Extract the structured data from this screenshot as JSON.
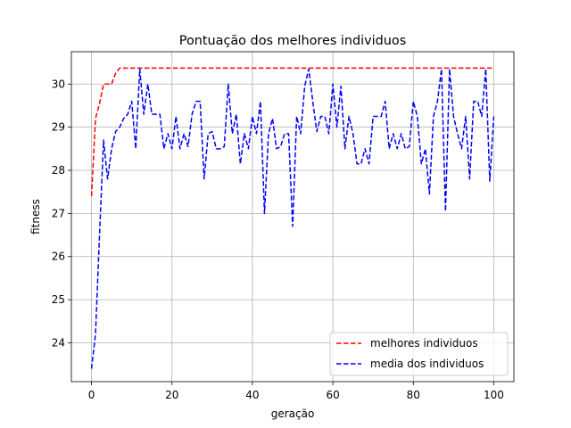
{
  "chart_data": {
    "type": "line",
    "title": "Pontuação dos melhores individuos",
    "xlabel": "geração",
    "ylabel": "fitness",
    "xlim": [
      -5,
      105
    ],
    "ylim": [
      23.1,
      30.75
    ],
    "xticks": [
      0,
      20,
      40,
      60,
      80,
      100
    ],
    "yticks": [
      24,
      25,
      26,
      27,
      28,
      29,
      30
    ],
    "grid": true,
    "legend_position": "lower-right",
    "series": [
      {
        "name": "melhores individuos",
        "color": "#ff0000",
        "style": "dashed",
        "x": [
          0,
          1,
          2,
          3,
          4,
          5,
          6,
          7,
          100
        ],
        "y": [
          27.4,
          29.2,
          29.55,
          30.0,
          30.0,
          30.0,
          30.25,
          30.37,
          30.37
        ]
      },
      {
        "name": "media dos individuos",
        "color": "#0000ff",
        "style": "dashed",
        "x": [
          0,
          1,
          2,
          3,
          4,
          5,
          6,
          7,
          8,
          9,
          10,
          11,
          12,
          13,
          14,
          15,
          16,
          17,
          18,
          19,
          20,
          21,
          22,
          23,
          24,
          25,
          26,
          27,
          28,
          29,
          30,
          31,
          32,
          33,
          34,
          35,
          36,
          37,
          38,
          39,
          40,
          41,
          42,
          43,
          44,
          45,
          46,
          47,
          48,
          49,
          50,
          51,
          52,
          53,
          54,
          55,
          56,
          57,
          58,
          59,
          60,
          61,
          62,
          63,
          64,
          65,
          66,
          67,
          68,
          69,
          70,
          71,
          72,
          73,
          74,
          75,
          76,
          77,
          78,
          79,
          80,
          81,
          82,
          83,
          84,
          85,
          86,
          87,
          88,
          89,
          90,
          91,
          92,
          93,
          94,
          95,
          96,
          97,
          98,
          99,
          100
        ],
        "y": [
          23.4,
          24.2,
          26.5,
          28.7,
          27.8,
          28.5,
          28.9,
          29.0,
          29.2,
          29.3,
          29.6,
          28.5,
          30.35,
          29.3,
          30.0,
          29.3,
          29.3,
          29.3,
          28.5,
          28.85,
          28.5,
          29.25,
          28.5,
          28.85,
          28.55,
          29.3,
          29.6,
          29.6,
          27.8,
          28.85,
          28.9,
          28.5,
          28.5,
          28.55,
          30.0,
          28.85,
          29.3,
          28.15,
          28.85,
          28.5,
          29.25,
          28.85,
          29.6,
          27.0,
          28.85,
          29.2,
          28.5,
          28.55,
          28.85,
          28.85,
          26.7,
          29.25,
          28.85,
          29.95,
          30.35,
          29.6,
          28.9,
          29.25,
          29.25,
          28.85,
          30.0,
          29.0,
          29.95,
          28.5,
          29.25,
          28.85,
          28.15,
          28.15,
          28.5,
          28.15,
          29.25,
          29.25,
          29.25,
          29.6,
          28.5,
          28.85,
          28.5,
          28.85,
          28.5,
          28.55,
          29.6,
          29.25,
          28.15,
          28.5,
          27.45,
          29.25,
          29.6,
          30.35,
          27.05,
          30.35,
          29.25,
          28.85,
          28.5,
          29.25,
          27.8,
          29.6,
          29.6,
          29.25,
          30.35,
          27.75,
          29.25
        ]
      }
    ]
  }
}
